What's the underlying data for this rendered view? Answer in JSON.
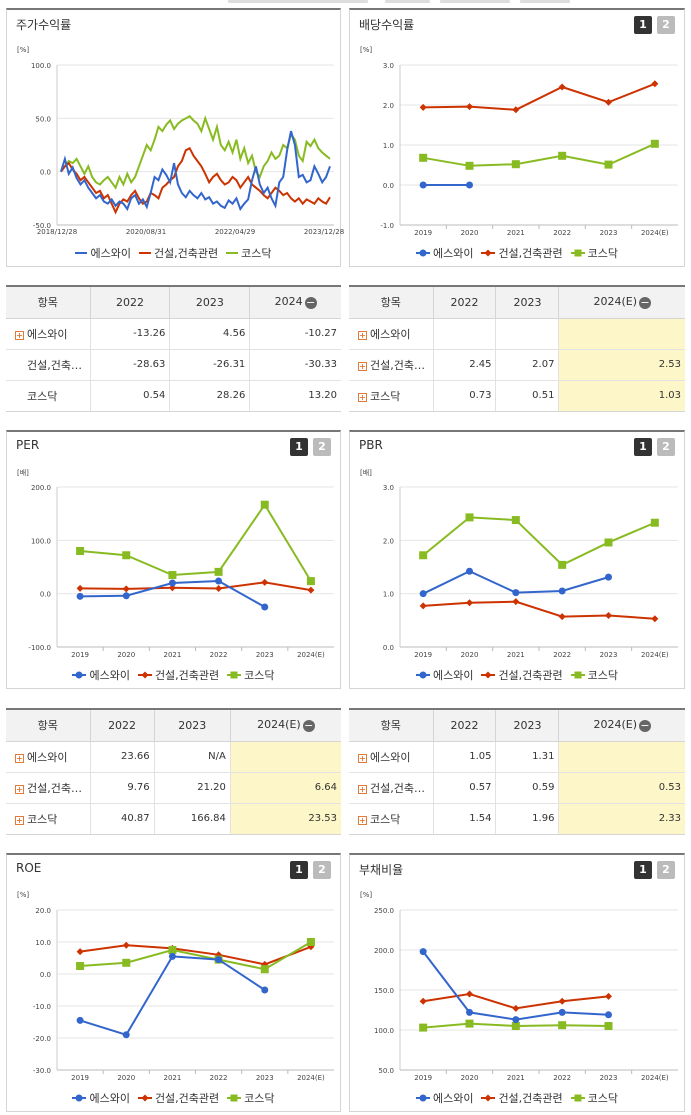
{
  "colors": {
    "company": "#3366cc",
    "industry": "#cc3300",
    "kosdaq": "#88bb22",
    "highlight": "#fdf6c9"
  },
  "legend": {
    "company": "에스와이",
    "industry": "건설,건축관련",
    "kosdaq": "코스닥"
  },
  "pager": {
    "btn1": "1",
    "btn2": "2"
  },
  "panels": {
    "stock": {
      "title": "주가수익률",
      "unit": "[%]"
    },
    "dividend": {
      "title": "배당수익률",
      "unit": "[%]"
    },
    "per": {
      "title": "PER",
      "unit": "[배]"
    },
    "pbr": {
      "title": "PBR",
      "unit": "[배]"
    },
    "roe": {
      "title": "ROE",
      "unit": "[%]"
    },
    "debt": {
      "title": "부채비율",
      "unit": "[%]"
    }
  },
  "tables": {
    "stock": {
      "headers": [
        "항목",
        "2022",
        "2023",
        "2024"
      ],
      "rows": [
        {
          "label": "에스와이",
          "plus": true,
          "values": [
            "-13.26",
            "4.56",
            "-10.27"
          ]
        },
        {
          "label": "건설,건축…",
          "plus": false,
          "values": [
            "-28.63",
            "-26.31",
            "-30.33"
          ]
        },
        {
          "label": "코스닥",
          "plus": false,
          "values": [
            "0.54",
            "28.26",
            "13.20"
          ]
        }
      ]
    },
    "dividend": {
      "headers": [
        "항목",
        "2022",
        "2023",
        "2024(E)"
      ],
      "rows": [
        {
          "label": "에스와이",
          "plus": true,
          "values": [
            "",
            "",
            ""
          ]
        },
        {
          "label": "건설,건축…",
          "plus": true,
          "values": [
            "2.45",
            "2.07",
            "2.53"
          ]
        },
        {
          "label": "코스닥",
          "plus": true,
          "values": [
            "0.73",
            "0.51",
            "1.03"
          ]
        }
      ]
    },
    "per": {
      "headers": [
        "항목",
        "2022",
        "2023",
        "2024(E)"
      ],
      "rows": [
        {
          "label": "에스와이",
          "plus": true,
          "values": [
            "23.66",
            "N/A",
            ""
          ]
        },
        {
          "label": "건설,건축…",
          "plus": true,
          "values": [
            "9.76",
            "21.20",
            "6.64"
          ]
        },
        {
          "label": "코스닥",
          "plus": true,
          "values": [
            "40.87",
            "166.84",
            "23.53"
          ]
        }
      ]
    },
    "pbr": {
      "headers": [
        "항목",
        "2022",
        "2023",
        "2024(E)"
      ],
      "rows": [
        {
          "label": "에스와이",
          "plus": true,
          "values": [
            "1.05",
            "1.31",
            ""
          ]
        },
        {
          "label": "건설,건축…",
          "plus": true,
          "values": [
            "0.57",
            "0.59",
            "0.53"
          ]
        },
        {
          "label": "코스닥",
          "plus": true,
          "values": [
            "1.54",
            "1.96",
            "2.33"
          ]
        }
      ]
    }
  },
  "chart_data": [
    {
      "id": "stock",
      "type": "line",
      "title": "주가수익률",
      "ylabel": "[%]",
      "ylim": [
        -50,
        100
      ],
      "yticks": [
        "100.0",
        "50.0",
        "0.0",
        "-50.0"
      ],
      "x_labels": [
        "2018/12/28",
        "2020/08/31",
        "2022/04/29",
        "2023/12/28"
      ],
      "series": [
        {
          "name": "에스와이",
          "values": [
            0,
            12,
            -2,
            4,
            -6,
            -12,
            -8,
            -15,
            -20,
            -25,
            -22,
            -28,
            -30,
            -26,
            -32,
            -28,
            -30,
            -35,
            -25,
            -22,
            -30,
            -26,
            -33,
            -20,
            -5,
            -8,
            2,
            -3,
            -10,
            8,
            -12,
            -20,
            -24,
            -18,
            -22,
            -25,
            -20,
            -26,
            -24,
            -30,
            -28,
            -32,
            -34,
            -27,
            -30,
            -25,
            -35,
            -30,
            -26,
            -8,
            5,
            -12,
            -20,
            -15,
            -25,
            -32,
            -10,
            -5,
            20,
            38,
            25,
            -5,
            -3,
            -10,
            -8,
            5,
            -2,
            -10,
            -5,
            5
          ]
        },
        {
          "name": "건설,건축관련",
          "values": [
            0,
            5,
            8,
            2,
            -2,
            -8,
            -5,
            -10,
            -15,
            -20,
            -18,
            -25,
            -22,
            -30,
            -38,
            -30,
            -26,
            -28,
            -22,
            -18,
            -25,
            -30,
            -28,
            -20,
            -22,
            -25,
            -15,
            -12,
            -8,
            -5,
            5,
            10,
            20,
            22,
            15,
            10,
            5,
            -2,
            -10,
            -5,
            -2,
            -8,
            -12,
            -10,
            -5,
            -8,
            -15,
            -10,
            -5,
            -12,
            -15,
            -18,
            -22,
            -25,
            -20,
            -15,
            -18,
            -22,
            -20,
            -25,
            -28,
            -25,
            -30,
            -26,
            -28,
            -30,
            -25,
            -28,
            -30,
            -24
          ]
        },
        {
          "name": "코스닥",
          "values": [
            0,
            5,
            10,
            8,
            12,
            5,
            -2,
            5,
            -5,
            -10,
            -12,
            -8,
            -5,
            -10,
            -15,
            -5,
            -12,
            -2,
            -10,
            -5,
            5,
            15,
            25,
            20,
            30,
            42,
            38,
            44,
            48,
            40,
            45,
            48,
            50,
            52,
            48,
            45,
            38,
            50,
            40,
            30,
            42,
            25,
            20,
            28,
            18,
            30,
            12,
            22,
            8,
            15,
            0,
            -5,
            5,
            10,
            18,
            12,
            15,
            25,
            22,
            35,
            30,
            15,
            10,
            28,
            24,
            30,
            22,
            18,
            15,
            12
          ]
        }
      ]
    },
    {
      "id": "dividend",
      "type": "line",
      "title": "배당수익률",
      "ylabel": "[%]",
      "ylim": [
        -1,
        3
      ],
      "yticks": [
        "3.0",
        "2.0",
        "1.0",
        "0.0",
        "-1.0"
      ],
      "categories": [
        "2019",
        "2020",
        "2021",
        "2022",
        "2023",
        "2024(E)"
      ],
      "series": [
        {
          "name": "에스와이",
          "values": [
            0.0,
            0.0,
            null,
            null,
            null,
            null
          ]
        },
        {
          "name": "건설,건축관련",
          "values": [
            1.94,
            1.96,
            1.88,
            2.45,
            2.07,
            2.53
          ]
        },
        {
          "name": "코스닥",
          "values": [
            0.68,
            0.48,
            0.52,
            0.73,
            0.51,
            1.03
          ]
        }
      ]
    },
    {
      "id": "per",
      "type": "line",
      "title": "PER",
      "ylabel": "[배]",
      "ylim": [
        -100,
        200
      ],
      "yticks": [
        "200.0",
        "100.0",
        "0.0",
        "-100.0"
      ],
      "categories": [
        "2019",
        "2020",
        "2021",
        "2022",
        "2023",
        "2024(E)"
      ],
      "series": [
        {
          "name": "에스와이",
          "values": [
            -5,
            -4,
            20,
            23.66,
            -25,
            null
          ]
        },
        {
          "name": "건설,건축관련",
          "values": [
            10,
            9,
            11,
            9.76,
            21.2,
            6.64
          ]
        },
        {
          "name": "코스닥",
          "values": [
            80,
            72,
            35,
            40.87,
            166.84,
            23.53
          ]
        }
      ]
    },
    {
      "id": "pbr",
      "type": "line",
      "title": "PBR",
      "ylabel": "[배]",
      "ylim": [
        0,
        3
      ],
      "yticks": [
        "3.0",
        "2.0",
        "1.0",
        "0.0"
      ],
      "categories": [
        "2019",
        "2020",
        "2021",
        "2022",
        "2023",
        "2024(E)"
      ],
      "series": [
        {
          "name": "에스와이",
          "values": [
            1.0,
            1.42,
            1.02,
            1.05,
            1.31,
            null
          ]
        },
        {
          "name": "건설,건축관련",
          "values": [
            0.77,
            0.83,
            0.85,
            0.57,
            0.59,
            0.53
          ]
        },
        {
          "name": "코스닥",
          "values": [
            1.72,
            2.43,
            2.38,
            1.54,
            1.96,
            2.33
          ]
        }
      ]
    },
    {
      "id": "roe",
      "type": "line",
      "title": "ROE",
      "ylabel": "[%]",
      "ylim": [
        -30,
        20
      ],
      "yticks": [
        "20.0",
        "10.0",
        "0.0",
        "-10.0",
        "-20.0",
        "-30.0"
      ],
      "categories": [
        "2019",
        "2020",
        "2021",
        "2022",
        "2023",
        "2024(E)"
      ],
      "series": [
        {
          "name": "에스와이",
          "values": [
            -14.5,
            -19,
            5.5,
            4.5,
            -5,
            null
          ]
        },
        {
          "name": "건설,건축관련",
          "values": [
            7,
            9,
            8,
            6,
            3,
            8.5
          ]
        },
        {
          "name": "코스닥",
          "values": [
            2.5,
            3.5,
            7.5,
            4.5,
            1.5,
            10
          ]
        }
      ]
    },
    {
      "id": "debt",
      "type": "line",
      "title": "부채비율",
      "ylabel": "[%]",
      "ylim": [
        50,
        250
      ],
      "yticks": [
        "250.0",
        "200.0",
        "150.0",
        "100.0",
        "50.0"
      ],
      "categories": [
        "2019",
        "2020",
        "2021",
        "2022",
        "2023",
        "2024(E)"
      ],
      "series": [
        {
          "name": "에스와이",
          "values": [
            198,
            122,
            113,
            122,
            119,
            null
          ]
        },
        {
          "name": "건설,건축관련",
          "values": [
            136,
            145,
            127,
            136,
            142,
            null
          ]
        },
        {
          "name": "코스닥",
          "values": [
            103,
            108,
            105,
            106,
            105,
            null
          ]
        }
      ]
    }
  ]
}
